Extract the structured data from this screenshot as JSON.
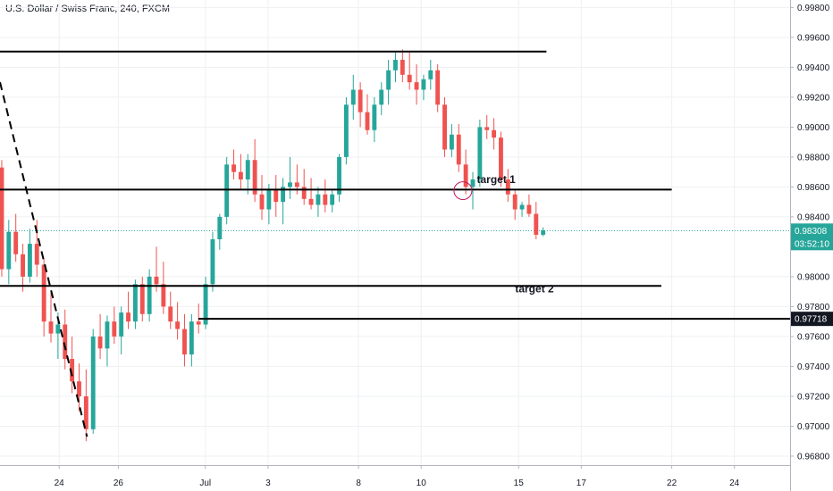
{
  "header": {
    "title": "U.S. Dollar / Swiss Franc, 240, FXCM"
  },
  "price_badge": {
    "value": "0.98308",
    "countdown": "03:52:10",
    "color": "#26a69a"
  },
  "level_badge": {
    "value": "0.97718",
    "color": "#131722"
  },
  "colors": {
    "up": "#26a69a",
    "down": "#ef5350",
    "grid": "#eef0f3",
    "line": "#000000"
  },
  "chart_data": {
    "type": "candlestick",
    "symbol": "USDCHF",
    "timeframe": "240",
    "source": "FXCM",
    "y_ticks": [
      "0.99800",
      "0.99600",
      "0.99400",
      "0.99200",
      "0.99000",
      "0.98800",
      "0.98600",
      "0.98400",
      "0.98000",
      "0.97800",
      "0.97600",
      "0.97400",
      "0.97200",
      "0.97000",
      "0.96800"
    ],
    "y_tick_values": [
      0.998,
      0.996,
      0.994,
      0.992,
      0.99,
      0.988,
      0.986,
      0.984,
      0.98,
      0.978,
      0.976,
      0.974,
      0.972,
      0.97,
      0.968
    ],
    "ylim": [
      0.9674,
      0.9985
    ],
    "x_ticks": [
      "24",
      "26",
      "Jul",
      "3",
      "8",
      "10",
      "15",
      "17",
      "22",
      "24"
    ],
    "x_tick_positions": [
      17,
      34,
      59,
      77,
      103,
      121,
      149,
      167,
      193,
      211
    ],
    "xlim": [
      0,
      227
    ],
    "last_price": 0.98308,
    "candles": [
      [
        0.9873,
        0.9878,
        0.98,
        0.9805
      ],
      [
        0.9805,
        0.9838,
        0.9795,
        0.983
      ],
      [
        0.983,
        0.9842,
        0.981,
        0.9815
      ],
      [
        0.9815,
        0.9822,
        0.979,
        0.98
      ],
      [
        0.98,
        0.9832,
        0.9796,
        0.9822
      ],
      [
        0.9822,
        0.9838,
        0.98,
        0.9808
      ],
      [
        0.9808,
        0.9812,
        0.976,
        0.977
      ],
      [
        0.977,
        0.979,
        0.9756,
        0.9762
      ],
      [
        0.9762,
        0.9776,
        0.9745,
        0.9768
      ],
      [
        0.9768,
        0.9778,
        0.9738,
        0.9745
      ],
      [
        0.9745,
        0.976,
        0.9722,
        0.973
      ],
      [
        0.973,
        0.9742,
        0.971,
        0.972
      ],
      [
        0.972,
        0.9738,
        0.969,
        0.9698
      ],
      [
        0.9698,
        0.9765,
        0.9695,
        0.976
      ],
      [
        0.976,
        0.9775,
        0.9745,
        0.9752
      ],
      [
        0.9752,
        0.9774,
        0.974,
        0.977
      ],
      [
        0.977,
        0.978,
        0.9755,
        0.976
      ],
      [
        0.976,
        0.978,
        0.9748,
        0.9776
      ],
      [
        0.9776,
        0.979,
        0.9765,
        0.977
      ],
      [
        0.977,
        0.9798,
        0.9765,
        0.9795
      ],
      [
        0.9795,
        0.98,
        0.977,
        0.9775
      ],
      [
        0.9775,
        0.9805,
        0.977,
        0.98
      ],
      [
        0.98,
        0.982,
        0.979,
        0.9795
      ],
      [
        0.9795,
        0.981,
        0.9775,
        0.978
      ],
      [
        0.978,
        0.979,
        0.9765,
        0.977
      ],
      [
        0.977,
        0.9783,
        0.9758,
        0.9765
      ],
      [
        0.9765,
        0.9775,
        0.974,
        0.9748
      ],
      [
        0.9748,
        0.9775,
        0.974,
        0.977
      ],
      [
        0.977,
        0.9782,
        0.9762,
        0.9768
      ],
      [
        0.9768,
        0.98,
        0.9765,
        0.9795
      ],
      [
        0.9795,
        0.983,
        0.979,
        0.9825
      ],
      [
        0.9825,
        0.9842,
        0.9818,
        0.984
      ],
      [
        0.984,
        0.988,
        0.9835,
        0.9875
      ],
      [
        0.9875,
        0.9885,
        0.9865,
        0.987
      ],
      [
        0.987,
        0.9882,
        0.9858,
        0.9865
      ],
      [
        0.9865,
        0.9882,
        0.9855,
        0.9878
      ],
      [
        0.9878,
        0.9892,
        0.985,
        0.9855
      ],
      [
        0.9855,
        0.9868,
        0.9838,
        0.9845
      ],
      [
        0.9845,
        0.9862,
        0.9835,
        0.9858
      ],
      [
        0.9858,
        0.9868,
        0.984,
        0.985
      ],
      [
        0.985,
        0.9866,
        0.9835,
        0.986
      ],
      [
        0.986,
        0.988,
        0.9852,
        0.9863
      ],
      [
        0.9863,
        0.9875,
        0.9855,
        0.986
      ],
      [
        0.986,
        0.9872,
        0.9848,
        0.9852
      ],
      [
        0.9852,
        0.9866,
        0.9845,
        0.9848
      ],
      [
        0.9848,
        0.986,
        0.984,
        0.9855
      ],
      [
        0.9855,
        0.9865,
        0.9843,
        0.9848
      ],
      [
        0.9848,
        0.9858,
        0.9843,
        0.9855
      ],
      [
        0.9855,
        0.9882,
        0.985,
        0.988
      ],
      [
        0.988,
        0.992,
        0.9875,
        0.9915
      ],
      [
        0.9915,
        0.9935,
        0.9905,
        0.9925
      ],
      [
        0.9925,
        0.993,
        0.99,
        0.991
      ],
      [
        0.991,
        0.9922,
        0.9895,
        0.9898
      ],
      [
        0.9898,
        0.992,
        0.989,
        0.9915
      ],
      [
        0.9915,
        0.993,
        0.9908,
        0.9925
      ],
      [
        0.9925,
        0.9945,
        0.9915,
        0.9938
      ],
      [
        0.9938,
        0.995,
        0.993,
        0.9945
      ],
      [
        0.9945,
        0.9952,
        0.993,
        0.9935
      ],
      [
        0.9935,
        0.995,
        0.9925,
        0.993
      ],
      [
        0.993,
        0.9942,
        0.9915,
        0.9925
      ],
      [
        0.9925,
        0.9935,
        0.9918,
        0.9932
      ],
      [
        0.9932,
        0.9945,
        0.9925,
        0.9938
      ],
      [
        0.9938,
        0.9942,
        0.991,
        0.9915
      ],
      [
        0.9915,
        0.992,
        0.988,
        0.9885
      ],
      [
        0.9885,
        0.9902,
        0.988,
        0.9895
      ],
      [
        0.9895,
        0.9902,
        0.987,
        0.9875
      ],
      [
        0.9875,
        0.9885,
        0.9855,
        0.986
      ],
      [
        0.986,
        0.987,
        0.9845,
        0.9865
      ],
      [
        0.9865,
        0.9905,
        0.986,
        0.99
      ],
      [
        0.99,
        0.9908,
        0.9892,
        0.9898
      ],
      [
        0.9898,
        0.9906,
        0.9885,
        0.9893
      ],
      [
        0.9893,
        0.9897,
        0.986,
        0.9865
      ],
      [
        0.9865,
        0.9872,
        0.985,
        0.9855
      ],
      [
        0.9855,
        0.9858,
        0.9838,
        0.9845
      ],
      [
        0.9845,
        0.985,
        0.984,
        0.9848
      ],
      [
        0.9848,
        0.9855,
        0.984,
        0.9842
      ],
      [
        0.9842,
        0.985,
        0.9825,
        0.9828
      ],
      [
        0.9828,
        0.9833,
        0.9827,
        0.9831
      ]
    ],
    "horizontal_lines": [
      {
        "y": 0.99505,
        "x_start": 0,
        "x_end": 157
      },
      {
        "y": 0.98582,
        "x_start": 0,
        "x_end": 193
      },
      {
        "y": 0.97938,
        "x_start": 0,
        "x_end": 190
      },
      {
        "y": 0.97718,
        "x_start": 57,
        "x_end": 227
      }
    ],
    "dashed_trendline": {
      "x1": 0,
      "y1": 0.993,
      "x2": 25,
      "y2": 0.9693
    },
    "annotations": [
      {
        "text": "target 1",
        "x": 137,
        "y": 0.98625
      },
      {
        "text": "target 2",
        "x": 148,
        "y": 0.97895
      }
    ],
    "circle_marker": {
      "x": 133,
      "y": 0.98575
    }
  }
}
